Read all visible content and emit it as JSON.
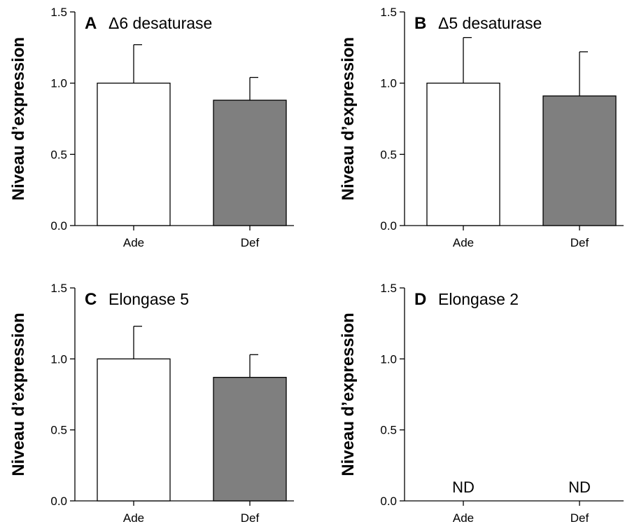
{
  "figure": {
    "colors": {
      "adequate": "#ffffff",
      "deficient": "#7f7f7f",
      "stroke": "#000000"
    }
  },
  "chart_data": [
    {
      "type": "bar",
      "panel": "A",
      "title": "Δ6 desaturase",
      "categories": [
        "Ade",
        "Def"
      ],
      "values": [
        1.0,
        0.88
      ],
      "errors": [
        0.27,
        0.16
      ],
      "value_labels": [
        "",
        ""
      ],
      "ylabel": "Niveau d’expression",
      "xlabel": "",
      "ylim": [
        0,
        1.5
      ],
      "yticks": [
        "0.0",
        "0.5",
        "1.0",
        "1.5"
      ],
      "grid": false
    },
    {
      "type": "bar",
      "panel": "B",
      "title": "Δ5 desaturase",
      "categories": [
        "Ade",
        "Def"
      ],
      "values": [
        1.0,
        0.91
      ],
      "errors": [
        0.32,
        0.31
      ],
      "value_labels": [
        "",
        ""
      ],
      "ylabel": "Niveau d’expression",
      "xlabel": "",
      "ylim": [
        0,
        1.5
      ],
      "yticks": [
        "0.0",
        "0.5",
        "1.0",
        "1.5"
      ],
      "grid": false
    },
    {
      "type": "bar",
      "panel": "C",
      "title": "Elongase 5",
      "categories": [
        "Ade",
        "Def"
      ],
      "values": [
        1.0,
        0.87
      ],
      "errors": [
        0.23,
        0.16
      ],
      "value_labels": [
        "",
        ""
      ],
      "ylabel": "Niveau d’expression",
      "xlabel": "",
      "ylim": [
        0,
        1.5
      ],
      "yticks": [
        "0.0",
        "0.5",
        "1.0",
        "1.5"
      ],
      "grid": false
    },
    {
      "type": "bar",
      "panel": "D",
      "title": "Elongase 2",
      "categories": [
        "Ade",
        "Def"
      ],
      "values": [
        null,
        null
      ],
      "errors": [
        null,
        null
      ],
      "value_labels": [
        "ND",
        "ND"
      ],
      "ylabel": "Niveau d’expression",
      "xlabel": "",
      "ylim": [
        0,
        1.5
      ],
      "yticks": [
        "0.0",
        "0.5",
        "1.0",
        "1.5"
      ],
      "grid": false
    }
  ]
}
